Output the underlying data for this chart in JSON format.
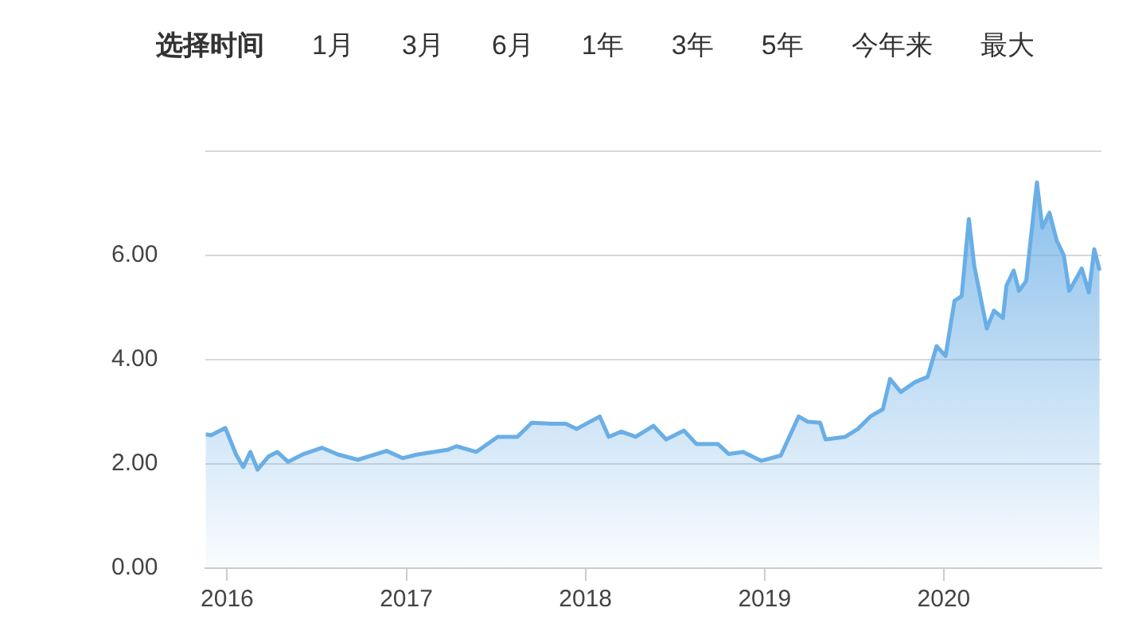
{
  "chart_data": {
    "type": "area",
    "annotations": [
      "选择时间",
      "1月",
      "3月",
      "6月",
      "1年",
      "3年",
      "5年",
      "今年来",
      "最大"
    ],
    "x": [
      2015.88,
      2015.91,
      2015.99,
      2016.05,
      2016.09,
      2016.13,
      2016.17,
      2016.23,
      2016.28,
      2016.34,
      2016.42,
      2016.53,
      2016.62,
      2016.73,
      2016.89,
      2016.98,
      2017.06,
      2017.23,
      2017.28,
      2017.39,
      2017.51,
      2017.62,
      2017.7,
      2017.81,
      2017.89,
      2017.95,
      2018.08,
      2018.13,
      2018.2,
      2018.28,
      2018.38,
      2018.45,
      2018.55,
      2018.62,
      2018.74,
      2018.8,
      2018.88,
      2018.98,
      2019.09,
      2019.19,
      2019.24,
      2019.31,
      2019.34,
      2019.45,
      2019.52,
      2019.59,
      2019.66,
      2019.7,
      2019.76,
      2019.84,
      2019.91,
      2019.96,
      2020.01,
      2020.06,
      2020.1,
      2020.14,
      2020.17,
      2020.24,
      2020.28,
      2020.33,
      2020.35,
      2020.39,
      2020.42,
      2020.46,
      2020.52,
      2020.55,
      2020.59,
      2020.63,
      2020.67,
      2020.7,
      2020.74,
      2020.77,
      2020.81,
      2020.84,
      2020.87
    ],
    "series": [
      {
        "color": "#6aaee6",
        "values": [
          2.57,
          2.55,
          2.69,
          2.18,
          1.94,
          2.23,
          1.89,
          2.14,
          2.23,
          2.04,
          2.18,
          2.31,
          2.18,
          2.08,
          2.25,
          2.11,
          2.18,
          2.27,
          2.34,
          2.23,
          2.52,
          2.52,
          2.79,
          2.77,
          2.77,
          2.67,
          2.91,
          2.52,
          2.62,
          2.52,
          2.73,
          2.47,
          2.64,
          2.38,
          2.38,
          2.19,
          2.23,
          2.06,
          2.16,
          2.91,
          2.81,
          2.79,
          2.47,
          2.52,
          2.67,
          2.91,
          3.05,
          3.63,
          3.38,
          3.57,
          3.67,
          4.26,
          4.07,
          5.13,
          5.22,
          6.7,
          5.8,
          4.6,
          4.94,
          4.8,
          5.42,
          5.71,
          5.32,
          5.51,
          7.4,
          6.53,
          6.82,
          6.29,
          6.0,
          5.32,
          5.56,
          5.75,
          5.29,
          6.12,
          5.71
        ]
      }
    ],
    "xlim": [
      2015.88,
      2020.88
    ],
    "xticks": [
      2016,
      2017,
      2018,
      2019,
      2020
    ],
    "ylim": [
      0,
      8
    ],
    "yticks": [
      {
        "value": 0,
        "label": "0.00"
      },
      {
        "value": 2,
        "label": "2.00"
      },
      {
        "value": 4,
        "label": "4.00"
      },
      {
        "value": 6,
        "label": "6.00"
      },
      {
        "value": 8,
        "label": null
      }
    ],
    "grid": "y",
    "legend": false,
    "marker": "none",
    "line_style": "solid"
  }
}
